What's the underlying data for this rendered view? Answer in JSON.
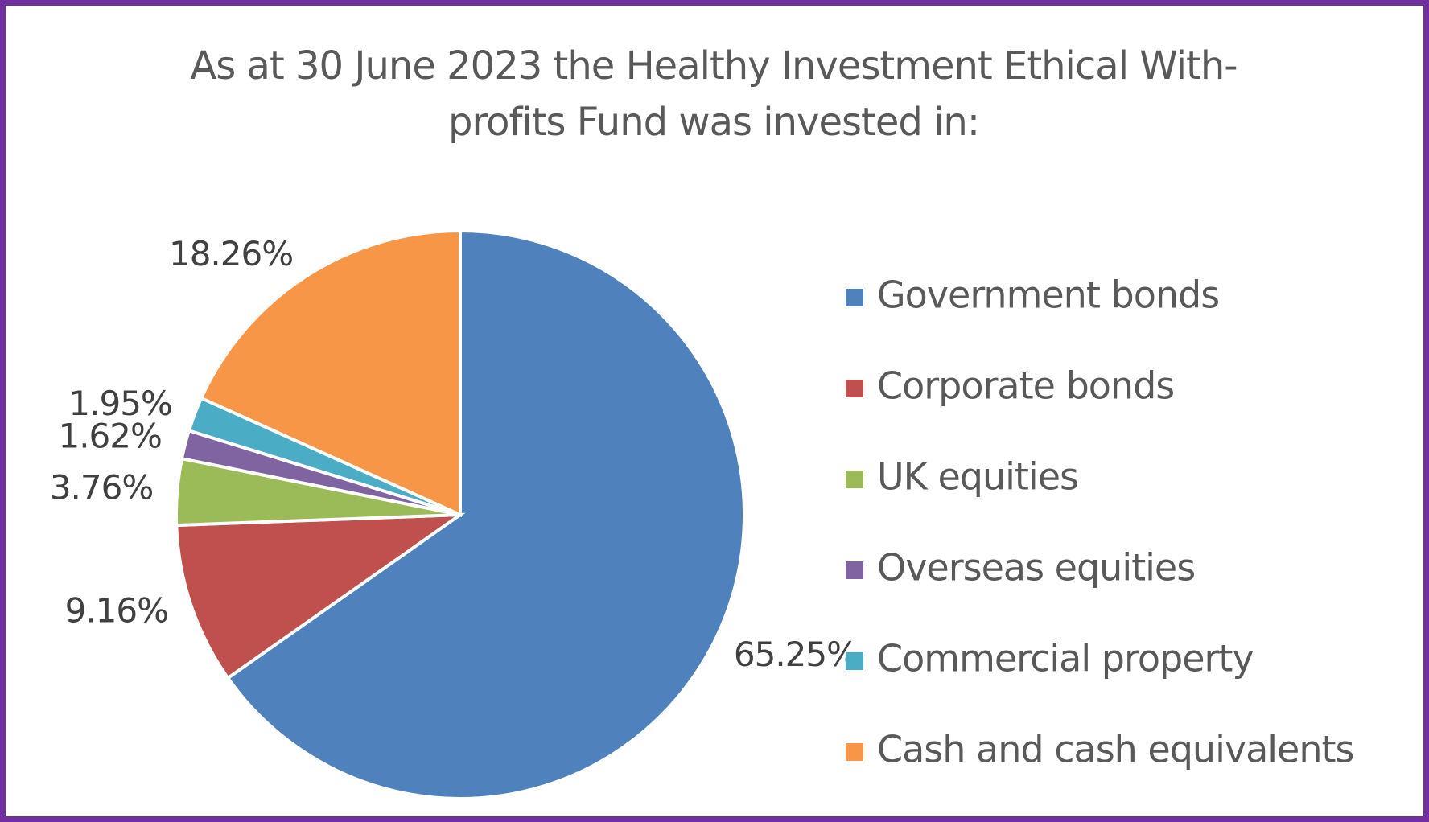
{
  "chart_data": {
    "type": "pie",
    "title": "As at 30 June 2023 the Healthy Investment Ethical With-profits Fund was invested in:",
    "categories": [
      "Government bonds",
      "Corporate bonds",
      "UK equities",
      "Overseas equities",
      "Commercial property",
      "Cash and cash equivalents"
    ],
    "values": [
      65.25,
      9.16,
      3.76,
      1.62,
      1.95,
      18.26
    ],
    "value_labels": [
      "65.25%",
      "9.16%",
      "3.76%",
      "1.62%",
      "1.95%",
      "18.26%"
    ],
    "colors": [
      "#4f81bd",
      "#c0504d",
      "#9bbb59",
      "#8064a2",
      "#4bacc6",
      "#f79646"
    ],
    "legend": "right"
  }
}
